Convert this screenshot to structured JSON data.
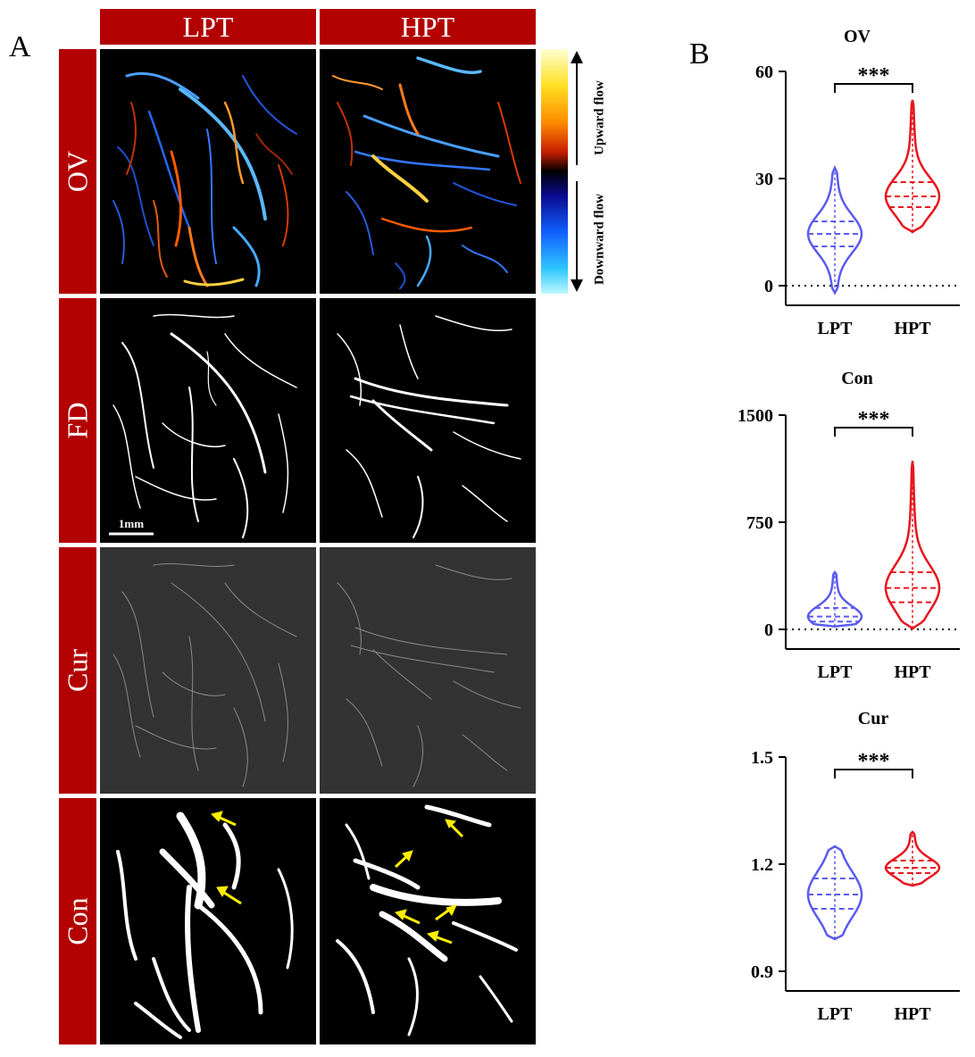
{
  "panel_a": {
    "letter": "A",
    "columns": [
      "LPT",
      "HPT"
    ],
    "rows": [
      "OV",
      "FD",
      "Cur",
      "Con"
    ],
    "scale_bar": "1mm",
    "colorbar": {
      "upper_label": "Upward flow",
      "lower_label": "Downward flow"
    },
    "colors": {
      "header_red": "#b30000",
      "arrow_yellow": "#ffee00",
      "cur_background": "#333333"
    }
  },
  "panel_b": {
    "letter": "B",
    "significance": "***",
    "colors": {
      "LPT": "#5b5bf0",
      "HPT": "#e8141e"
    }
  },
  "chart_data": [
    {
      "type": "violin",
      "title": "OV",
      "categories": [
        "LPT",
        "HPT"
      ],
      "yticks": [
        "0",
        "30",
        "60"
      ],
      "ylim": [
        0,
        60
      ],
      "reference_line": 0,
      "series": [
        {
          "name": "LPT",
          "range": [
            -2,
            33
          ],
          "quartiles": [
            11,
            14.5,
            18
          ]
        },
        {
          "name": "HPT",
          "range": [
            15,
            52
          ],
          "quartiles": [
            22,
            25,
            29
          ]
        }
      ],
      "annotation": "***"
    },
    {
      "type": "violin",
      "title": "Con",
      "categories": [
        "LPT",
        "HPT"
      ],
      "yticks": [
        "0",
        "750",
        "1500"
      ],
      "ylim": [
        0,
        1500
      ],
      "reference_line": 0,
      "series": [
        {
          "name": "LPT",
          "range": [
            20,
            400
          ],
          "quartiles": [
            55,
            90,
            150
          ]
        },
        {
          "name": "HPT",
          "range": [
            5,
            1180
          ],
          "quartiles": [
            190,
            290,
            400
          ]
        }
      ],
      "annotation": "***"
    },
    {
      "type": "violin",
      "title": "Cur",
      "categories": [
        "LPT",
        "HPT"
      ],
      "yticks": [
        "0.9",
        "1.2",
        "1.5"
      ],
      "ylim": [
        0.9,
        1.5
      ],
      "series": [
        {
          "name": "LPT",
          "range": [
            0.99,
            1.25
          ],
          "quartiles": [
            1.075,
            1.115,
            1.16
          ]
        },
        {
          "name": "HPT",
          "range": [
            1.14,
            1.29
          ],
          "quartiles": [
            1.175,
            1.19,
            1.21
          ]
        }
      ],
      "annotation": "***"
    }
  ]
}
